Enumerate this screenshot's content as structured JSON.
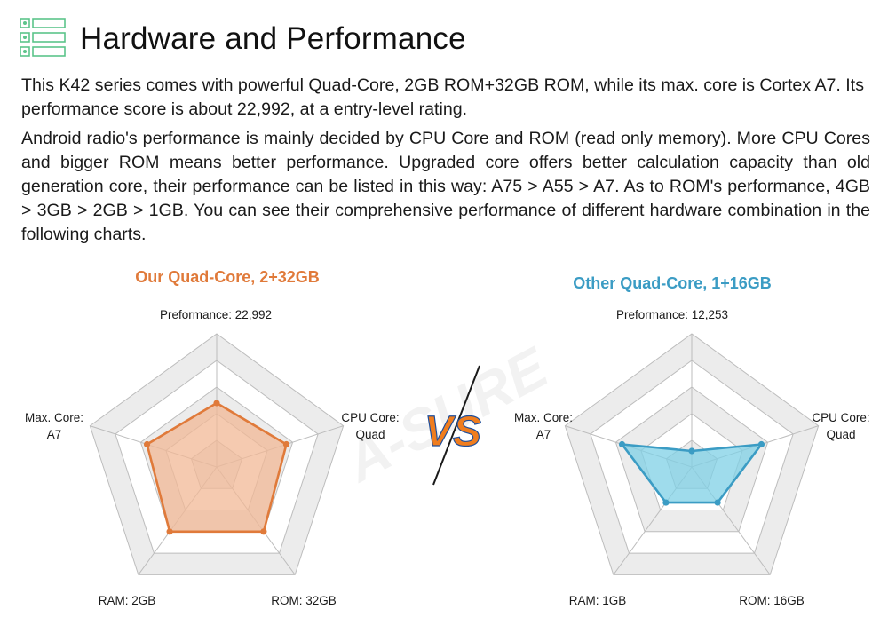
{
  "header": {
    "title": "Hardware and Performance",
    "icon": "list-icon"
  },
  "intro": {
    "paragraph_1": "This K42 series comes with powerful Quad-Core, 2GB ROM+32GB ROM, while its max. core is Cortex A7. Its performance score is about 22,992, at a entry-level rating.",
    "paragraph_2": "Android radio's performance is mainly decided by CPU Core and ROM (read only memory). More CPU Cores and bigger ROM means better performance. Upgraded core offers better calculation capacity than old generation core, their performance can be listed in this way: A75 > A55 > A7. As to ROM's performance, 4GB > 3GB > 2GB > 1GB. You can see their comprehensive performance of different hardware combination in the following charts."
  },
  "watermark": {
    "text": "A-SURE"
  },
  "vs_label": "VS",
  "colors": {
    "left_accent": "#e07a3a",
    "left_fill": "#f1b895",
    "right_accent": "#3b9cc4",
    "right_fill": "#7fd0e6",
    "grid_ring": "#ececec",
    "grid_line": "#bdbdbd"
  },
  "chart_data": [
    {
      "type": "radar",
      "title": "Our Quad-Core, 2+32GB",
      "axes": [
        "Preformance: 22,992",
        "CPU Core: Quad",
        "ROM: 32GB",
        "RAM: 2GB",
        "Max. Core: A7"
      ],
      "values": [
        0.48,
        0.55,
        0.6,
        0.6,
        0.55
      ],
      "rmax": 1
    },
    {
      "type": "radar",
      "title": "Other Quad-Core, 1+16GB",
      "axes": [
        "Preformance: 12,253",
        "CPU Core: Quad",
        "ROM: 16GB",
        "RAM: 1GB",
        "Max. Core: A7"
      ],
      "values": [
        0.12,
        0.55,
        0.33,
        0.33,
        0.55
      ],
      "rmax": 1
    }
  ],
  "labels": {
    "left": {
      "top": "Preformance: 22,992",
      "right_line1": "CPU Core:",
      "right_line2": "Quad",
      "bottom_right": "ROM: 32GB",
      "bottom_left": "RAM: 2GB",
      "left_line1": "Max. Core:",
      "left_line2": "A7"
    },
    "right": {
      "top": "Preformance: 12,253",
      "right_line1": "CPU Core:",
      "right_line2": "Quad",
      "bottom_right": "ROM: 16GB",
      "bottom_left": "RAM: 1GB",
      "left_line1": "Max. Core:",
      "left_line2": "A7"
    }
  }
}
